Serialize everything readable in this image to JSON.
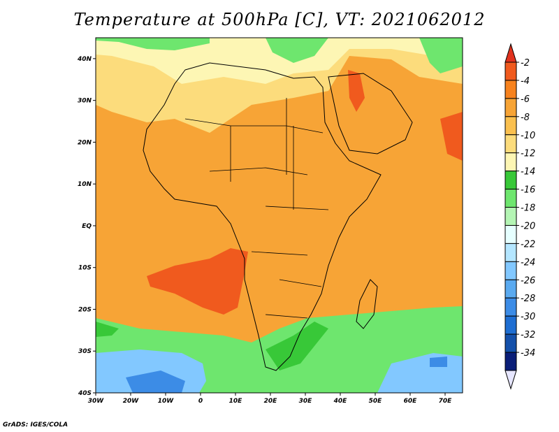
{
  "title": "Temperature at 500hPa [C], VT: 2021062012",
  "credit": "GrADS: IGES/COLA",
  "map": {
    "lon_range": [
      -30,
      75
    ],
    "lat_range": [
      -40,
      45
    ],
    "lon_ticks": [
      {
        "value": -30,
        "label": "30W"
      },
      {
        "value": -20,
        "label": "20W"
      },
      {
        "value": -10,
        "label": "10W"
      },
      {
        "value": 0,
        "label": "0"
      },
      {
        "value": 10,
        "label": "10E"
      },
      {
        "value": 20,
        "label": "20E"
      },
      {
        "value": 30,
        "label": "30E"
      },
      {
        "value": 40,
        "label": "40E"
      },
      {
        "value": 50,
        "label": "50E"
      },
      {
        "value": 60,
        "label": "60E"
      },
      {
        "value": 70,
        "label": "70E"
      }
    ],
    "lat_ticks": [
      {
        "value": 40,
        "label": "40N"
      },
      {
        "value": 30,
        "label": "30N"
      },
      {
        "value": 20,
        "label": "20N"
      },
      {
        "value": 10,
        "label": "10N"
      },
      {
        "value": 0,
        "label": "EQ"
      },
      {
        "value": -10,
        "label": "10S"
      },
      {
        "value": -20,
        "label": "20S"
      },
      {
        "value": -30,
        "label": "30S"
      },
      {
        "value": -40,
        "label": "40S"
      }
    ],
    "background_color": "#f7a436"
  },
  "colorbar": {
    "levels": [
      {
        "label": "-2",
        "color": "#f05a1e"
      },
      {
        "label": "-4",
        "color": "#f7821e"
      },
      {
        "label": "-6",
        "color": "#f7a436"
      },
      {
        "label": "-8",
        "color": "#fac04f"
      },
      {
        "label": "-10",
        "color": "#fcdc7c"
      },
      {
        "label": "-12",
        "color": "#fdf6b4"
      },
      {
        "label": "-14",
        "color": "#38c838"
      },
      {
        "label": "-16",
        "color": "#6ee66e"
      },
      {
        "label": "-18",
        "color": "#b4f5b4"
      },
      {
        "label": "-20",
        "color": "#e6ffff"
      },
      {
        "label": "-22",
        "color": "#b4e6ff"
      },
      {
        "label": "-24",
        "color": "#82c8ff"
      },
      {
        "label": "-26",
        "color": "#5aaaf0"
      },
      {
        "label": "-28",
        "color": "#3c8ce6"
      },
      {
        "label": "-30",
        "color": "#1e6ed2"
      },
      {
        "label": "-32",
        "color": "#1450aa"
      },
      {
        "label": "-34",
        "color": "#0a1e78"
      }
    ],
    "top_arrow_color": "#e1321e",
    "bottom_arrow_color": "#e6e6ff"
  },
  "field_regions": [
    {
      "name": "north-cold-green",
      "color": "#6ee66e"
    },
    {
      "name": "sahara-pale",
      "color": "#fcdc7c"
    },
    {
      "name": "gulf-pale",
      "color": "#fdf6b4"
    },
    {
      "name": "warm-atlantic",
      "color": "#f05a1e"
    },
    {
      "name": "arabia-warm",
      "color": "#f05a1e"
    },
    {
      "name": "india-warm",
      "color": "#f05a1e"
    },
    {
      "name": "southern-green",
      "color": "#6ee66e"
    },
    {
      "name": "southern-darkgreen",
      "color": "#38c838"
    },
    {
      "name": "southern-blue",
      "color": "#82c8ff"
    },
    {
      "name": "southern-deepblue",
      "color": "#3c8ce6"
    }
  ]
}
